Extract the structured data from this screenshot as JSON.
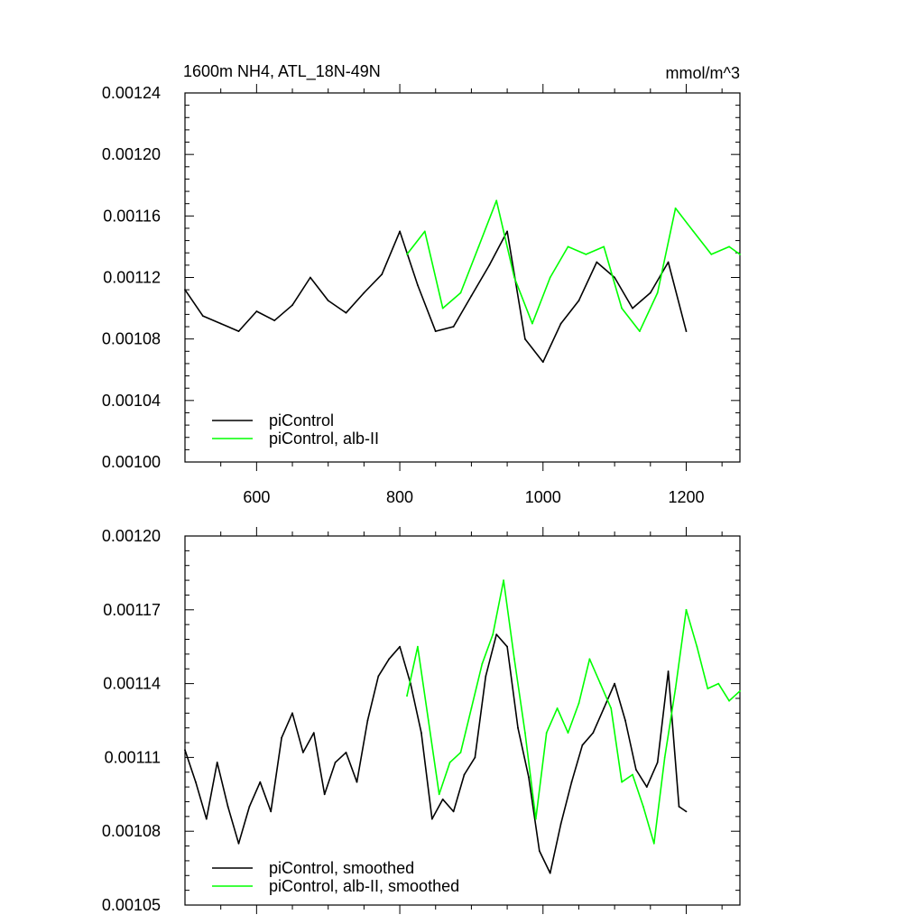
{
  "chart_data": [
    {
      "type": "line",
      "title": "1600m NH4, ATL_18N-49N",
      "units_label": "mmol/m^3",
      "xlim": [
        500,
        1275
      ],
      "ylim": [
        0.001,
        0.00124
      ],
      "x_ticks": [
        600,
        800,
        1000,
        1200
      ],
      "y_ticks": [
        0.001,
        0.00104,
        0.00108,
        0.00112,
        0.00116,
        0.0012,
        0.00124
      ],
      "y_tick_labels": [
        "0.00100",
        "0.00104",
        "0.00108",
        "0.00112",
        "0.00116",
        "0.00120",
        "0.00124"
      ],
      "legend": "bottom-left",
      "series": [
        {
          "name": "piControl",
          "color": "#000000",
          "x": [
            500,
            525,
            550,
            575,
            600,
            625,
            650,
            675,
            700,
            725,
            750,
            775,
            800,
            825,
            850,
            875,
            900,
            925,
            950,
            975,
            1000,
            1025,
            1050,
            1075,
            1100,
            1125,
            1150,
            1175,
            1200
          ],
          "values": [
            0.001112,
            0.001095,
            0.00109,
            0.001085,
            0.001098,
            0.001092,
            0.001102,
            0.00112,
            0.001105,
            0.001097,
            0.00111,
            0.001122,
            0.00115,
            0.001115,
            0.001085,
            0.001088,
            0.001108,
            0.001128,
            0.00115,
            0.00108,
            0.001065,
            0.00109,
            0.001105,
            0.00113,
            0.00112,
            0.0011,
            0.00111,
            0.00113,
            0.001085
          ]
        },
        {
          "name": "piControl, alb-II",
          "color": "#00ff00",
          "x": [
            810,
            835,
            860,
            885,
            910,
            935,
            960,
            985,
            1010,
            1035,
            1060,
            1085,
            1110,
            1135,
            1160,
            1185,
            1210,
            1235,
            1260,
            1275
          ],
          "values": [
            0.001135,
            0.00115,
            0.0011,
            0.00111,
            0.00114,
            0.00117,
            0.00112,
            0.00109,
            0.00112,
            0.00114,
            0.001135,
            0.00114,
            0.0011,
            0.001085,
            0.00111,
            0.001165,
            0.00115,
            0.001135,
            0.00114,
            0.001135
          ]
        }
      ]
    },
    {
      "type": "line",
      "xlim": [
        500,
        1275
      ],
      "ylim": [
        0.00105,
        0.0012
      ],
      "x_ticks": [
        600,
        800,
        1000,
        1200
      ],
      "y_ticks": [
        0.00105,
        0.00108,
        0.00111,
        0.00114,
        0.00117,
        0.0012
      ],
      "y_tick_labels": [
        "0.00105",
        "0.00108",
        "0.00111",
        "0.00114",
        "0.00117",
        "0.00120"
      ],
      "legend": "bottom-left",
      "series": [
        {
          "name": "piControl, smoothed",
          "color": "#000000",
          "x": [
            500,
            515,
            530,
            545,
            560,
            575,
            590,
            605,
            620,
            635,
            650,
            665,
            680,
            695,
            710,
            725,
            740,
            755,
            770,
            785,
            800,
            815,
            830,
            845,
            860,
            875,
            890,
            905,
            920,
            935,
            950,
            965,
            980,
            995,
            1010,
            1025,
            1040,
            1055,
            1070,
            1085,
            1100,
            1115,
            1130,
            1145,
            1160,
            1175,
            1190,
            1200
          ],
          "values": [
            0.001113,
            0.0011,
            0.001085,
            0.001108,
            0.00109,
            0.001075,
            0.00109,
            0.0011,
            0.001088,
            0.001118,
            0.001128,
            0.001112,
            0.00112,
            0.001095,
            0.001108,
            0.001112,
            0.0011,
            0.001125,
            0.001143,
            0.00115,
            0.001155,
            0.00114,
            0.00112,
            0.001085,
            0.001093,
            0.001088,
            0.001103,
            0.00111,
            0.001143,
            0.00116,
            0.001155,
            0.001122,
            0.001102,
            0.001072,
            0.001063,
            0.001083,
            0.0011,
            0.001115,
            0.00112,
            0.00113,
            0.00114,
            0.001125,
            0.001105,
            0.001098,
            0.001108,
            0.001145,
            0.00109,
            0.001088
          ]
        },
        {
          "name": "piControl, alb-II, smoothed",
          "color": "#00ff00",
          "x": [
            810,
            825,
            840,
            855,
            870,
            885,
            900,
            915,
            930,
            945,
            960,
            975,
            990,
            1005,
            1020,
            1035,
            1050,
            1065,
            1080,
            1095,
            1110,
            1125,
            1140,
            1155,
            1170,
            1185,
            1200,
            1215,
            1230,
            1245,
            1260,
            1275
          ],
          "values": [
            0.001135,
            0.001155,
            0.001125,
            0.001095,
            0.001108,
            0.001112,
            0.00113,
            0.001148,
            0.00116,
            0.001182,
            0.00115,
            0.00112,
            0.001085,
            0.00112,
            0.00113,
            0.00112,
            0.001132,
            0.00115,
            0.00114,
            0.00113,
            0.0011,
            0.001103,
            0.00109,
            0.001075,
            0.00111,
            0.001138,
            0.00117,
            0.001155,
            0.001138,
            0.00114,
            0.001133,
            0.001137
          ]
        }
      ]
    }
  ]
}
